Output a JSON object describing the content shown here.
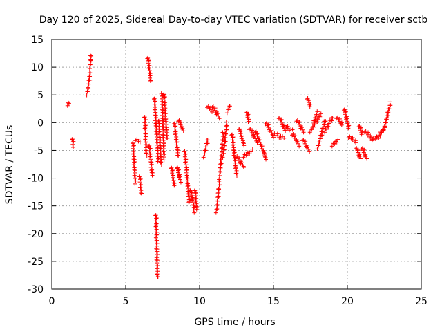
{
  "chart_data": {
    "type": "scatter",
    "title": "Day 120 of 2025, Sidereal Day-to-day VTEC variation (SDTVAR) for receiver sctb",
    "xlabel": "GPS time / hours",
    "ylabel": "SDTVAR / TECUs",
    "xlim": [
      0,
      25
    ],
    "ylim": [
      -30,
      15
    ],
    "xticks": [
      0,
      5,
      10,
      15,
      20,
      25
    ],
    "yticks": [
      -30,
      -25,
      -20,
      -15,
      -10,
      -5,
      0,
      5,
      10,
      15
    ],
    "grid": true,
    "marker": "+",
    "marker_color": "#ff0000",
    "series": [
      {
        "name": "SDTVAR",
        "segments": [
          [
            1.1,
            3.3,
            1.15,
            3.6
          ],
          [
            1.4,
            -2.8,
            1.45,
            -4.2
          ],
          [
            2.4,
            5.2,
            2.6,
            9.0
          ],
          [
            2.6,
            10.0,
            2.65,
            12.2
          ],
          [
            5.5,
            -3.5,
            5.65,
            -10.8
          ],
          [
            5.7,
            -3.0,
            6.0,
            -3.5
          ],
          [
            5.95,
            -9.5,
            6.05,
            -12.8
          ],
          [
            6.3,
            1.2,
            6.4,
            -6.0
          ],
          [
            6.5,
            11.8,
            6.7,
            7.5
          ],
          [
            6.6,
            -4.0,
            6.8,
            -9.5
          ],
          [
            6.95,
            4.5,
            7.2,
            -7.0
          ],
          [
            7.05,
            -16.5,
            7.15,
            -28.0
          ],
          [
            7.25,
            0.5,
            7.4,
            -7.5
          ],
          [
            7.45,
            5.5,
            7.6,
            -6.5
          ],
          [
            7.6,
            5.3,
            7.8,
            -3.0
          ],
          [
            8.1,
            -8.0,
            8.3,
            -11.5
          ],
          [
            8.3,
            0.0,
            8.55,
            -6.0
          ],
          [
            8.5,
            -8.0,
            8.7,
            -10.5
          ],
          [
            8.6,
            0.5,
            8.9,
            -1.5
          ],
          [
            9.0,
            -5.0,
            9.3,
            -14.5
          ],
          [
            9.4,
            -12.0,
            9.65,
            -16.0
          ],
          [
            9.7,
            -12.0,
            9.8,
            -15.5
          ],
          [
            10.3,
            -6.0,
            10.55,
            -3.0
          ],
          [
            10.55,
            3.0,
            10.9,
            2.0
          ],
          [
            10.9,
            3.0,
            11.3,
            1.0
          ],
          [
            11.15,
            -16.0,
            11.35,
            -10.5
          ],
          [
            11.35,
            -10.0,
            11.6,
            -2.0
          ],
          [
            11.6,
            -6.0,
            11.85,
            0.0
          ],
          [
            11.9,
            2.0,
            12.05,
            3.0
          ],
          [
            12.2,
            -2.0,
            12.5,
            -9.5
          ],
          [
            12.5,
            -6.0,
            13.0,
            -8.0
          ],
          [
            12.7,
            -1.0,
            13.0,
            -4.0
          ],
          [
            13.0,
            -6.0,
            13.6,
            -5.0
          ],
          [
            13.2,
            2.0,
            13.35,
            0.0
          ],
          [
            13.4,
            -1.0,
            13.9,
            -3.5
          ],
          [
            13.8,
            -1.5,
            14.5,
            -6.5
          ],
          [
            14.5,
            0.0,
            15.0,
            -2.5
          ],
          [
            15.0,
            -2.0,
            15.7,
            -2.8
          ],
          [
            15.4,
            1.0,
            15.8,
            -1.5
          ],
          [
            15.7,
            -0.5,
            16.3,
            -1.5
          ],
          [
            16.3,
            -2.0,
            16.7,
            -4.0
          ],
          [
            16.6,
            0.5,
            17.0,
            -1.5
          ],
          [
            17.0,
            -3.0,
            17.4,
            -5.0
          ],
          [
            17.3,
            4.5,
            17.5,
            3.0
          ],
          [
            17.5,
            -1.5,
            18.2,
            1.5
          ],
          [
            17.7,
            0.0,
            18.0,
            2.0
          ],
          [
            18.0,
            -4.5,
            18.5,
            0.5
          ],
          [
            18.5,
            -1.5,
            19.0,
            1.0
          ],
          [
            19.0,
            -4.0,
            19.4,
            -3.0
          ],
          [
            19.3,
            1.0,
            19.7,
            -0.5
          ],
          [
            19.8,
            2.5,
            20.1,
            -1.0
          ],
          [
            20.1,
            -2.5,
            20.6,
            -3.5
          ],
          [
            20.6,
            -4.5,
            20.9,
            -6.5
          ],
          [
            20.8,
            -0.5,
            21.0,
            -2.0
          ],
          [
            21.0,
            -4.5,
            21.3,
            -6.5
          ],
          [
            21.2,
            -1.5,
            21.7,
            -3.0
          ],
          [
            21.7,
            -3.0,
            22.2,
            -2.5
          ],
          [
            22.2,
            -2.0,
            22.5,
            -1.0
          ],
          [
            22.5,
            -1.0,
            22.9,
            3.5
          ]
        ]
      }
    ]
  }
}
